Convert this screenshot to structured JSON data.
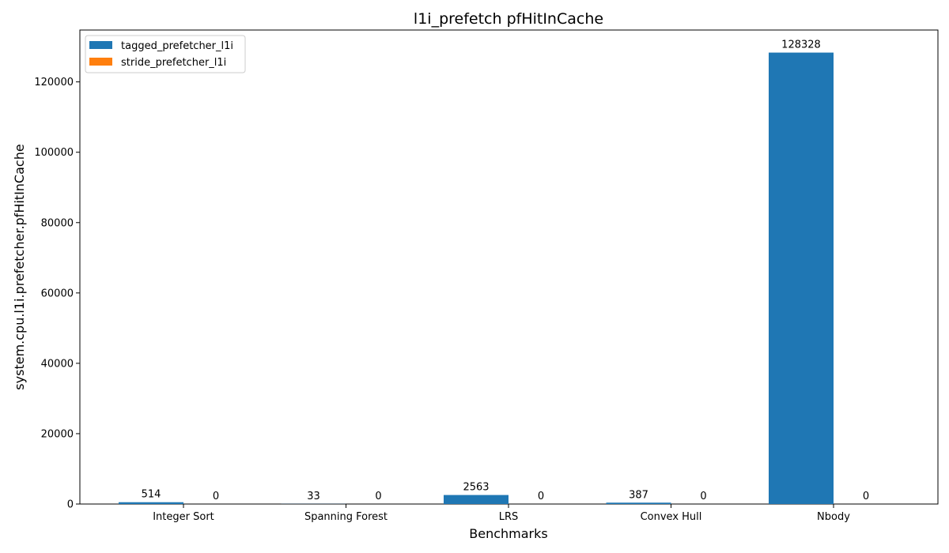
{
  "chart_data": {
    "type": "bar",
    "title": "l1i_prefetch pfHitInCache",
    "xlabel": "Benchmarks",
    "ylabel": "system.cpu.l1i.prefetcher.pfHitInCache",
    "categories": [
      "Integer Sort",
      "Spanning Forest",
      "LRS",
      "Convex Hull",
      "Nbody"
    ],
    "series": [
      {
        "name": "tagged_prefetcher_l1i",
        "color": "#1f77b4",
        "values": [
          514,
          33,
          2563,
          387,
          128328
        ]
      },
      {
        "name": "stride_prefetcher_l1i",
        "color": "#ff7f0e",
        "values": [
          0,
          0,
          0,
          0,
          0
        ]
      }
    ],
    "yticks": [
      0,
      20000,
      40000,
      60000,
      80000,
      100000,
      120000
    ],
    "ylim": [
      0,
      134744
    ],
    "legend": "upper-left",
    "grid": false
  }
}
